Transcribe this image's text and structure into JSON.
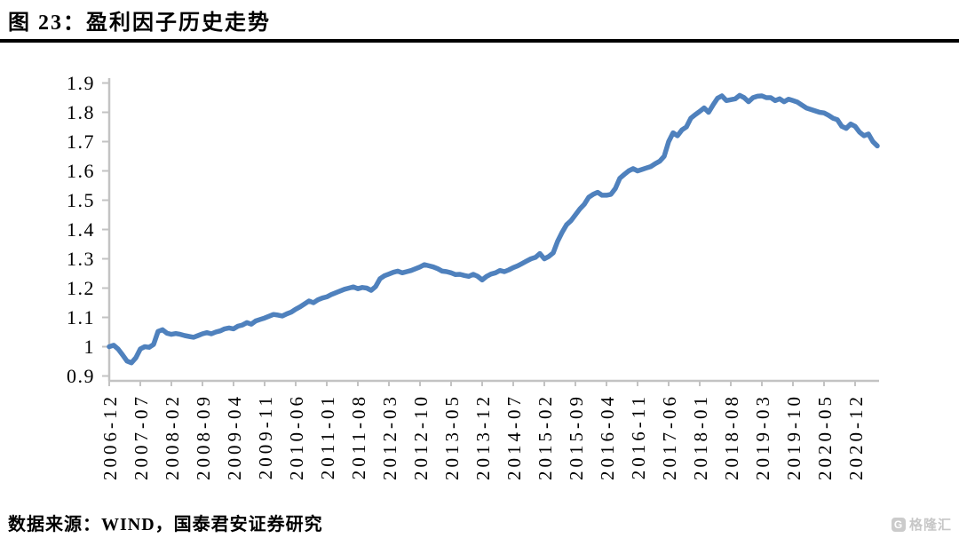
{
  "page": {
    "title": "图 23：盈利因子历史走势",
    "source_note": "数据来源：WIND，国泰君安证券研究",
    "watermark_text": "格隆汇",
    "watermark_icon": "gelonghui-logo"
  },
  "chart_data": {
    "type": "line",
    "title": "盈利因子历史走势",
    "series_name": "盈利因子",
    "grid": false,
    "legend": "none",
    "xlabel": "",
    "ylabel": "",
    "ylim": [
      0.9,
      1.9
    ],
    "line_color": "#4F81BD",
    "axis_color": "#c3c3c3",
    "tick_label_color": "#000000",
    "y_ticks": [
      0.9,
      1.0,
      1.1,
      1.2,
      1.3,
      1.4,
      1.5,
      1.6,
      1.7,
      1.8,
      1.9
    ],
    "y_tick_labels": [
      "0.9",
      "1",
      "1.1",
      "1.2",
      "1.3",
      "1.4",
      "1.5",
      "1.6",
      "1.7",
      "1.8",
      "1.9"
    ],
    "x_tick_labels": [
      "2006-12",
      "2007-07",
      "2008-02",
      "2008-09",
      "2009-04",
      "2009-11",
      "2010-06",
      "2011-01",
      "2011-08",
      "2012-03",
      "2012-10",
      "2013-05",
      "2013-12",
      "2014-07",
      "2015-02",
      "2015-09",
      "2016-04",
      "2016-11",
      "2017-06",
      "2018-01",
      "2018-08",
      "2019-03",
      "2019-10",
      "2020-05",
      "2020-12"
    ],
    "x_tick_every_n_months": 7,
    "x": [
      "2006-12",
      "2007-01",
      "2007-02",
      "2007-03",
      "2007-04",
      "2007-05",
      "2007-06",
      "2007-07",
      "2007-08",
      "2007-09",
      "2007-10",
      "2007-11",
      "2007-12",
      "2008-01",
      "2008-02",
      "2008-03",
      "2008-04",
      "2008-05",
      "2008-06",
      "2008-07",
      "2008-08",
      "2008-09",
      "2008-10",
      "2008-11",
      "2008-12",
      "2009-01",
      "2009-02",
      "2009-03",
      "2009-04",
      "2009-05",
      "2009-06",
      "2009-07",
      "2009-08",
      "2009-09",
      "2009-10",
      "2009-11",
      "2009-12",
      "2010-01",
      "2010-02",
      "2010-03",
      "2010-04",
      "2010-05",
      "2010-06",
      "2010-07",
      "2010-08",
      "2010-09",
      "2010-10",
      "2010-11",
      "2010-12",
      "2011-01",
      "2011-02",
      "2011-03",
      "2011-04",
      "2011-05",
      "2011-06",
      "2011-07",
      "2011-08",
      "2011-09",
      "2011-10",
      "2011-11",
      "2011-12",
      "2012-01",
      "2012-02",
      "2012-03",
      "2012-04",
      "2012-05",
      "2012-06",
      "2012-07",
      "2012-08",
      "2012-09",
      "2012-10",
      "2012-11",
      "2012-12",
      "2013-01",
      "2013-02",
      "2013-03",
      "2013-04",
      "2013-05",
      "2013-06",
      "2013-07",
      "2013-08",
      "2013-09",
      "2013-10",
      "2013-11",
      "2013-12",
      "2014-01",
      "2014-02",
      "2014-03",
      "2014-04",
      "2014-05",
      "2014-06",
      "2014-07",
      "2014-08",
      "2014-09",
      "2014-10",
      "2014-11",
      "2014-12",
      "2015-01",
      "2015-02",
      "2015-03",
      "2015-04",
      "2015-05",
      "2015-06",
      "2015-07",
      "2015-08",
      "2015-09",
      "2015-10",
      "2015-11",
      "2015-12",
      "2016-01",
      "2016-02",
      "2016-03",
      "2016-04",
      "2016-05",
      "2016-06",
      "2016-07",
      "2016-08",
      "2016-09",
      "2016-10",
      "2016-11",
      "2016-12",
      "2017-01",
      "2017-02",
      "2017-03",
      "2017-04",
      "2017-05",
      "2017-06",
      "2017-07",
      "2017-08",
      "2017-09",
      "2017-10",
      "2017-11",
      "2017-12",
      "2018-01",
      "2018-02",
      "2018-03",
      "2018-04",
      "2018-05",
      "2018-06",
      "2018-07",
      "2018-08",
      "2018-09",
      "2018-10",
      "2018-11",
      "2018-12",
      "2019-01",
      "2019-02",
      "2019-03",
      "2019-04",
      "2019-05",
      "2019-06",
      "2019-07",
      "2019-08",
      "2019-09",
      "2019-10",
      "2019-11",
      "2019-12",
      "2020-01",
      "2020-02",
      "2020-03",
      "2020-04",
      "2020-05",
      "2020-06",
      "2020-07",
      "2020-08",
      "2020-09",
      "2020-10",
      "2020-11",
      "2020-12",
      "2021-01",
      "2021-02",
      "2021-03",
      "2021-04",
      "2021-05"
    ],
    "values": [
      1.0,
      1.005,
      0.992,
      0.972,
      0.951,
      0.945,
      0.962,
      0.992,
      1.0,
      0.998,
      1.008,
      1.052,
      1.058,
      1.046,
      1.042,
      1.045,
      1.042,
      1.038,
      1.035,
      1.032,
      1.038,
      1.044,
      1.048,
      1.044,
      1.05,
      1.054,
      1.061,
      1.064,
      1.061,
      1.07,
      1.074,
      1.082,
      1.077,
      1.088,
      1.093,
      1.098,
      1.104,
      1.11,
      1.108,
      1.105,
      1.112,
      1.118,
      1.128,
      1.136,
      1.146,
      1.156,
      1.15,
      1.16,
      1.166,
      1.17,
      1.178,
      1.184,
      1.19,
      1.196,
      1.2,
      1.204,
      1.198,
      1.202,
      1.2,
      1.192,
      1.205,
      1.232,
      1.242,
      1.248,
      1.254,
      1.258,
      1.252,
      1.256,
      1.26,
      1.266,
      1.272,
      1.28,
      1.276,
      1.272,
      1.266,
      1.258,
      1.256,
      1.252,
      1.246,
      1.247,
      1.243,
      1.24,
      1.247,
      1.24,
      1.228,
      1.24,
      1.248,
      1.252,
      1.26,
      1.256,
      1.262,
      1.27,
      1.276,
      1.284,
      1.292,
      1.3,
      1.305,
      1.318,
      1.3,
      1.308,
      1.32,
      1.36,
      1.39,
      1.416,
      1.43,
      1.45,
      1.47,
      1.486,
      1.51,
      1.52,
      1.527,
      1.517,
      1.517,
      1.52,
      1.54,
      1.575,
      1.588,
      1.6,
      1.608,
      1.6,
      1.605,
      1.61,
      1.615,
      1.625,
      1.633,
      1.65,
      1.7,
      1.73,
      1.72,
      1.74,
      1.75,
      1.78,
      1.792,
      1.803,
      1.815,
      1.8,
      1.825,
      1.848,
      1.856,
      1.84,
      1.843,
      1.846,
      1.858,
      1.85,
      1.836,
      1.85,
      1.855,
      1.856,
      1.85,
      1.85,
      1.84,
      1.846,
      1.836,
      1.845,
      1.84,
      1.835,
      1.825,
      1.815,
      1.81,
      1.805,
      1.8,
      1.798,
      1.79,
      1.78,
      1.775,
      1.752,
      1.745,
      1.76,
      1.752,
      1.732,
      1.72,
      1.726,
      1.7,
      1.685
    ]
  }
}
